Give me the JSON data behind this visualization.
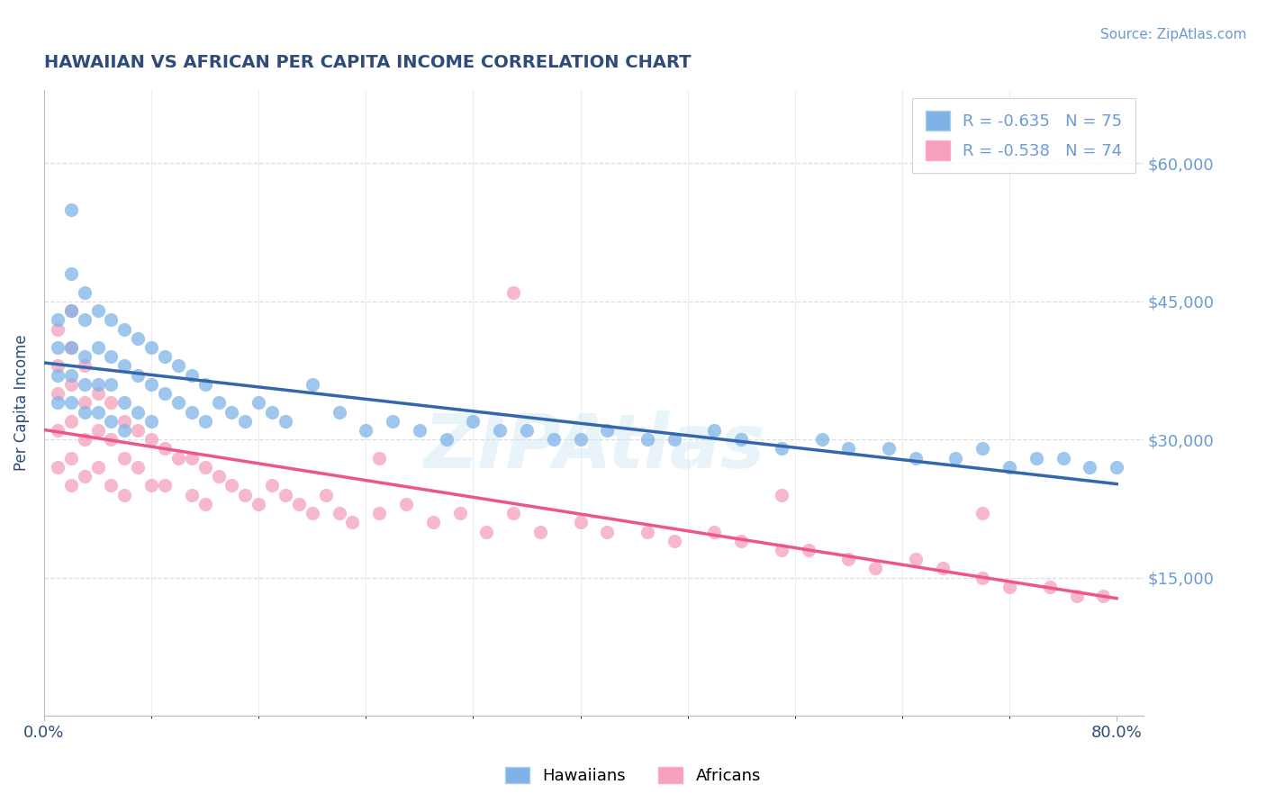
{
  "title": "HAWAIIAN VS AFRICAN PER CAPITA INCOME CORRELATION CHART",
  "source_text": "Source: ZipAtlas.com",
  "ylabel": "Per Capita Income",
  "xlim": [
    0.0,
    0.82
  ],
  "ylim": [
    0,
    68000
  ],
  "yticks": [
    0,
    15000,
    30000,
    45000,
    60000
  ],
  "ytick_labels": [
    "",
    "$15,000",
    "$30,000",
    "$45,000",
    "$60,000"
  ],
  "watermark": "ZIPAtlas",
  "title_color": "#2e4b7a",
  "source_color": "#6b9bd2",
  "axis_color": "#bbbbbb",
  "grid_color": "#dddddd",
  "blue_color": "#7fb3e8",
  "pink_color": "#f5a0bc",
  "blue_line_color": "#3366aa",
  "pink_line_color": "#ee5588",
  "hawaiians_x": [
    0.01,
    0.01,
    0.01,
    0.01,
    0.02,
    0.02,
    0.02,
    0.02,
    0.02,
    0.02,
    0.03,
    0.03,
    0.03,
    0.03,
    0.03,
    0.04,
    0.04,
    0.04,
    0.04,
    0.05,
    0.05,
    0.05,
    0.05,
    0.06,
    0.06,
    0.06,
    0.06,
    0.07,
    0.07,
    0.07,
    0.08,
    0.08,
    0.08,
    0.09,
    0.09,
    0.1,
    0.1,
    0.11,
    0.11,
    0.12,
    0.12,
    0.13,
    0.14,
    0.15,
    0.16,
    0.17,
    0.18,
    0.2,
    0.22,
    0.24,
    0.26,
    0.28,
    0.3,
    0.32,
    0.34,
    0.36,
    0.38,
    0.4,
    0.42,
    0.45,
    0.47,
    0.5,
    0.52,
    0.55,
    0.58,
    0.6,
    0.63,
    0.65,
    0.68,
    0.7,
    0.72,
    0.74,
    0.76,
    0.78,
    0.8
  ],
  "hawaiians_y": [
    43000,
    40000,
    37000,
    34000,
    55000,
    48000,
    44000,
    40000,
    37000,
    34000,
    46000,
    43000,
    39000,
    36000,
    33000,
    44000,
    40000,
    36000,
    33000,
    43000,
    39000,
    36000,
    32000,
    42000,
    38000,
    34000,
    31000,
    41000,
    37000,
    33000,
    40000,
    36000,
    32000,
    39000,
    35000,
    38000,
    34000,
    37000,
    33000,
    36000,
    32000,
    34000,
    33000,
    32000,
    34000,
    33000,
    32000,
    36000,
    33000,
    31000,
    32000,
    31000,
    30000,
    32000,
    31000,
    31000,
    30000,
    30000,
    31000,
    30000,
    30000,
    31000,
    30000,
    29000,
    30000,
    29000,
    29000,
    28000,
    28000,
    29000,
    27000,
    28000,
    28000,
    27000,
    27000
  ],
  "africans_x": [
    0.01,
    0.01,
    0.01,
    0.01,
    0.01,
    0.02,
    0.02,
    0.02,
    0.02,
    0.02,
    0.02,
    0.03,
    0.03,
    0.03,
    0.03,
    0.04,
    0.04,
    0.04,
    0.05,
    0.05,
    0.05,
    0.06,
    0.06,
    0.06,
    0.07,
    0.07,
    0.08,
    0.08,
    0.09,
    0.09,
    0.1,
    0.11,
    0.11,
    0.12,
    0.12,
    0.13,
    0.14,
    0.15,
    0.16,
    0.17,
    0.18,
    0.19,
    0.2,
    0.21,
    0.22,
    0.23,
    0.25,
    0.27,
    0.29,
    0.31,
    0.33,
    0.35,
    0.37,
    0.4,
    0.42,
    0.45,
    0.47,
    0.5,
    0.52,
    0.55,
    0.57,
    0.6,
    0.62,
    0.65,
    0.67,
    0.7,
    0.72,
    0.75,
    0.77,
    0.79,
    0.35,
    0.25,
    0.55,
    0.7
  ],
  "africans_y": [
    42000,
    38000,
    35000,
    31000,
    27000,
    44000,
    40000,
    36000,
    32000,
    28000,
    25000,
    38000,
    34000,
    30000,
    26000,
    35000,
    31000,
    27000,
    34000,
    30000,
    25000,
    32000,
    28000,
    24000,
    31000,
    27000,
    30000,
    25000,
    29000,
    25000,
    28000,
    28000,
    24000,
    27000,
    23000,
    26000,
    25000,
    24000,
    23000,
    25000,
    24000,
    23000,
    22000,
    24000,
    22000,
    21000,
    22000,
    23000,
    21000,
    22000,
    20000,
    22000,
    20000,
    21000,
    20000,
    20000,
    19000,
    20000,
    19000,
    18000,
    18000,
    17000,
    16000,
    17000,
    16000,
    15000,
    14000,
    14000,
    13000,
    13000,
    46000,
    28000,
    24000,
    22000
  ]
}
